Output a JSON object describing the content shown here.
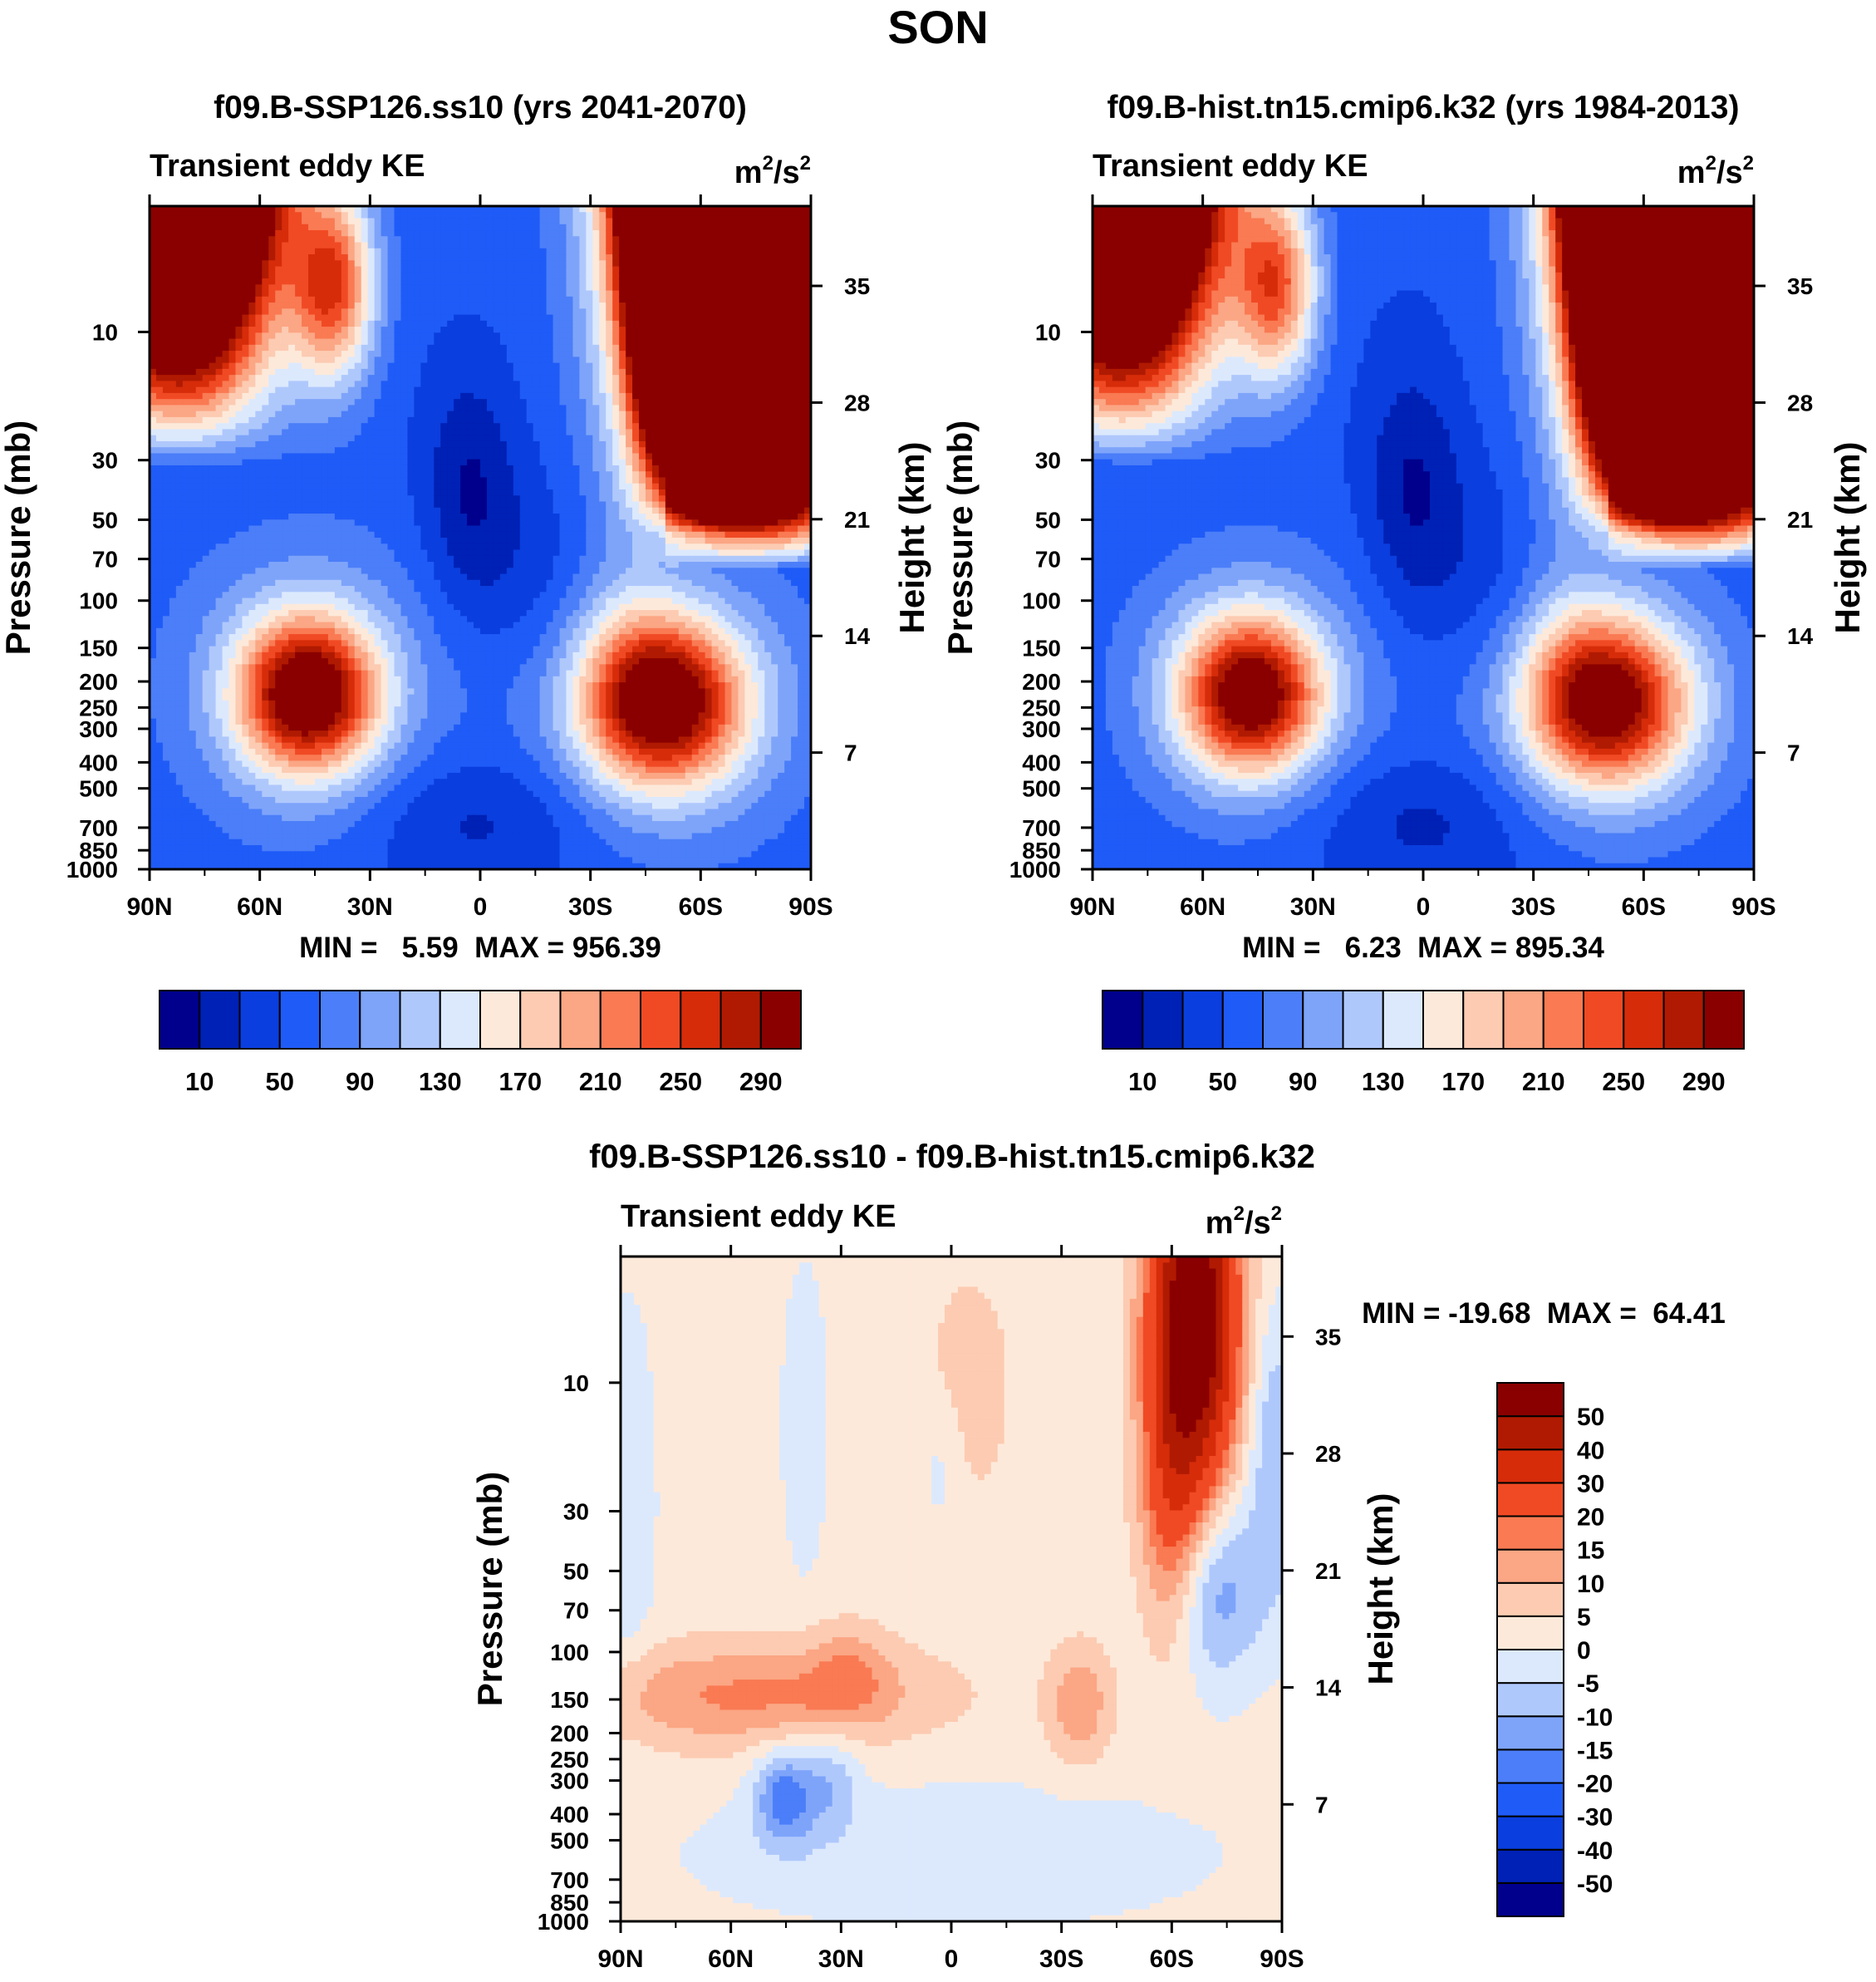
{
  "figure": {
    "title": "SON",
    "units_base": "m",
    "units_mid": "/s",
    "units_sup": "2"
  },
  "chart_data": [
    {
      "type": "heatmap",
      "title": "f09.B-SSP126.ss10 (yrs 2041-2070)",
      "left_label": "Transient eddy KE",
      "ylabel": "Pressure (mb)",
      "y2label": "Height (km)",
      "xticks": [
        "90N",
        "60N",
        "30N",
        "0",
        "30S",
        "60S",
        "90S"
      ],
      "x_values": [
        90,
        60,
        30,
        0,
        -30,
        -60,
        -90
      ],
      "pressure_ticks": [
        "10",
        "30",
        "50",
        "70",
        "100",
        "150",
        "200",
        "250",
        "300",
        "400",
        "500",
        "700",
        "850",
        "1000"
      ],
      "pressure_values": [
        10,
        30,
        50,
        70,
        100,
        150,
        200,
        250,
        300,
        400,
        500,
        700,
        850,
        1000
      ],
      "height_ticks": [
        "35",
        "28",
        "21",
        "14",
        "7"
      ],
      "height_values": [
        35,
        28,
        21,
        14,
        7
      ],
      "stats_text": "MIN =   5.59  MAX = 956.39",
      "min": 5.59,
      "max": 956.39,
      "colorbar": {
        "orientation": "horizontal",
        "levels": [
          10,
          30,
          50,
          70,
          90,
          110,
          130,
          150,
          170,
          190,
          210,
          230,
          250,
          270,
          290
        ],
        "labels": [
          "10",
          "50",
          "90",
          "130",
          "170",
          "210",
          "250",
          "290"
        ],
        "colors": [
          "#00008c",
          "#0021b5",
          "#0a3ede",
          "#1f5bf7",
          "#4b7ef8",
          "#7ea4fa",
          "#afc8fc",
          "#dce9fd",
          "#fde9da",
          "#fccbb2",
          "#fba684",
          "#f97a53",
          "#f04a24",
          "#d62c0a",
          "#b01a02",
          "#8a0000"
        ]
      },
      "features": [
        {
          "lat": 50,
          "p": 230,
          "value": 290
        },
        {
          "lat": -50,
          "p": 270,
          "value": 270
        },
        {
          "lat": -75,
          "p": 3,
          "value": 956
        },
        {
          "lat": 80,
          "p": 3,
          "value": 400
        },
        {
          "lat": 0,
          "p": 30,
          "value": 10
        }
      ]
    },
    {
      "type": "heatmap",
      "title": "f09.B-hist.tn15.cmip6.k32 (yrs 1984-2013)",
      "left_label": "Transient eddy KE",
      "ylabel": "Pressure (mb)",
      "y2label": "Height (km)",
      "xticks": [
        "90N",
        "60N",
        "30N",
        "0",
        "30S",
        "60S",
        "90S"
      ],
      "x_values": [
        90,
        60,
        30,
        0,
        -30,
        -60,
        -90
      ],
      "pressure_ticks": [
        "10",
        "30",
        "50",
        "70",
        "100",
        "150",
        "200",
        "250",
        "300",
        "400",
        "500",
        "700",
        "850",
        "1000"
      ],
      "pressure_values": [
        10,
        30,
        50,
        70,
        100,
        150,
        200,
        250,
        300,
        400,
        500,
        700,
        850,
        1000
      ],
      "height_ticks": [
        "35",
        "28",
        "21",
        "14",
        "7"
      ],
      "height_values": [
        35,
        28,
        21,
        14,
        7
      ],
      "stats_text": "MIN =   6.23  MAX = 895.34",
      "min": 6.23,
      "max": 895.34,
      "colorbar": {
        "orientation": "horizontal",
        "levels": [
          10,
          30,
          50,
          70,
          90,
          110,
          130,
          150,
          170,
          190,
          210,
          230,
          250,
          270,
          290
        ],
        "labels": [
          "10",
          "50",
          "90",
          "130",
          "170",
          "210",
          "250",
          "290"
        ],
        "colors": [
          "#00008c",
          "#0021b5",
          "#0a3ede",
          "#1f5bf7",
          "#4b7ef8",
          "#7ea4fa",
          "#afc8fc",
          "#dce9fd",
          "#fde9da",
          "#fccbb2",
          "#fba684",
          "#f97a53",
          "#f04a24",
          "#d62c0a",
          "#b01a02",
          "#8a0000"
        ]
      },
      "features": [
        {
          "lat": 50,
          "p": 230,
          "value": 280
        },
        {
          "lat": -50,
          "p": 270,
          "value": 260
        },
        {
          "lat": -75,
          "p": 3,
          "value": 895
        },
        {
          "lat": 80,
          "p": 3,
          "value": 380
        },
        {
          "lat": 0,
          "p": 30,
          "value": 10
        }
      ]
    },
    {
      "type": "heatmap",
      "title": "f09.B-SSP126.ss10 - f09.B-hist.tn15.cmip6.k32",
      "left_label": "Transient eddy KE",
      "ylabel": "Pressure (mb)",
      "y2label": "Height (km)",
      "xticks": [
        "90N",
        "60N",
        "30N",
        "0",
        "30S",
        "60S",
        "90S"
      ],
      "x_values": [
        90,
        60,
        30,
        0,
        -30,
        -60,
        -90
      ],
      "pressure_ticks": [
        "10",
        "30",
        "50",
        "70",
        "100",
        "150",
        "200",
        "250",
        "300",
        "400",
        "500",
        "700",
        "850",
        "1000"
      ],
      "pressure_values": [
        10,
        30,
        50,
        70,
        100,
        150,
        200,
        250,
        300,
        400,
        500,
        700,
        850,
        1000
      ],
      "height_ticks": [
        "35",
        "28",
        "21",
        "14",
        "7"
      ],
      "height_values": [
        35,
        28,
        21,
        14,
        7
      ],
      "stats_text": "MIN = -19.68  MAX =  64.41",
      "min": -19.68,
      "max": 64.41,
      "colorbar": {
        "orientation": "vertical",
        "levels": [
          -50,
          -40,
          -30,
          -20,
          -15,
          -10,
          -5,
          0,
          5,
          10,
          15,
          20,
          30,
          40,
          50
        ],
        "labels": [
          "-50",
          "-40",
          "-30",
          "-20",
          "-15",
          "-10",
          "-5",
          "0",
          "5",
          "10",
          "15",
          "20",
          "30",
          "40",
          "50"
        ],
        "colors": [
          "#00008c",
          "#0021b5",
          "#0a3ede",
          "#1f5bf7",
          "#4b7ef8",
          "#7ea4fa",
          "#afc8fc",
          "#dce9fd",
          "#fde9da",
          "#fccbb2",
          "#fba684",
          "#f97a53",
          "#f04a24",
          "#d62c0a",
          "#b01a02",
          "#8a0000"
        ]
      },
      "features": [
        {
          "lat": -65,
          "p": 3,
          "value": 64
        },
        {
          "lat": 75,
          "p": 180,
          "value": 22
        },
        {
          "lat": -35,
          "p": 160,
          "value": 20
        },
        {
          "lat": 45,
          "p": 380,
          "value": -19
        },
        {
          "lat": -70,
          "p": 60,
          "value": -16
        }
      ]
    }
  ]
}
